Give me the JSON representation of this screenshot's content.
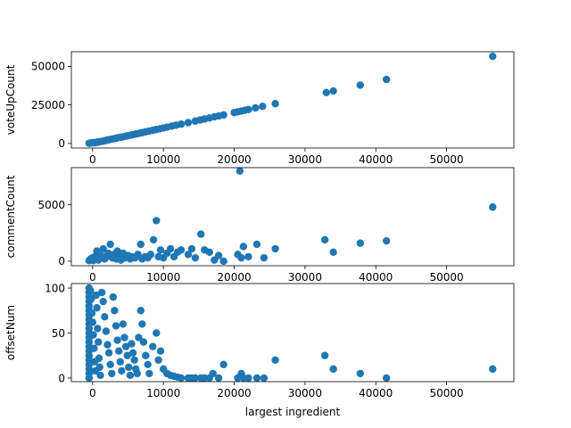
{
  "chart_data": [
    {
      "type": "scatter",
      "xlabel": "",
      "ylabel": "voteUpCount",
      "xlim": [
        -3000,
        59500
      ],
      "ylim": [
        -3000,
        59500
      ],
      "xticks": [
        0,
        10000,
        20000,
        30000,
        40000,
        50000
      ],
      "xtick_labels": [
        "0",
        "10000",
        "20000",
        "30000",
        "40000",
        "50000"
      ],
      "yticks": [
        0,
        25000,
        50000
      ],
      "ytick_labels": [
        "0",
        "25000",
        "50000"
      ],
      "show_xtick_labels": true,
      "color": "#1f77b4",
      "points": [
        [
          -500,
          100
        ],
        [
          -200,
          300
        ],
        [
          0,
          500
        ],
        [
          200,
          400
        ],
        [
          400,
          600
        ],
        [
          600,
          700
        ],
        [
          800,
          900
        ],
        [
          1000,
          1100
        ],
        [
          1300,
          1300
        ],
        [
          1500,
          1500
        ],
        [
          1800,
          1800
        ],
        [
          2000,
          2100
        ],
        [
          2300,
          2300
        ],
        [
          2600,
          2700
        ],
        [
          3000,
          3000
        ],
        [
          3300,
          3300
        ],
        [
          3600,
          3700
        ],
        [
          4000,
          4000
        ],
        [
          4300,
          4300
        ],
        [
          4700,
          4700
        ],
        [
          5000,
          5000
        ],
        [
          5400,
          5400
        ],
        [
          5800,
          5800
        ],
        [
          6200,
          6200
        ],
        [
          6600,
          6600
        ],
        [
          7000,
          7000
        ],
        [
          7500,
          7500
        ],
        [
          8000,
          8000
        ],
        [
          8500,
          8500
        ],
        [
          9000,
          9000
        ],
        [
          9500,
          9500
        ],
        [
          10000,
          10000
        ],
        [
          10500,
          10500
        ],
        [
          11200,
          11200
        ],
        [
          11800,
          11800
        ],
        [
          12500,
          12500
        ],
        [
          13500,
          13500
        ],
        [
          14500,
          14500
        ],
        [
          15200,
          15200
        ],
        [
          15800,
          15800
        ],
        [
          16500,
          16500
        ],
        [
          17200,
          17200
        ],
        [
          17800,
          17800
        ],
        [
          18500,
          18500
        ],
        [
          20000,
          20000
        ],
        [
          20500,
          20500
        ],
        [
          21000,
          21000
        ],
        [
          21500,
          21500
        ],
        [
          22000,
          22000
        ],
        [
          23000,
          23000
        ],
        [
          24000,
          24000
        ],
        [
          25800,
          25800
        ],
        [
          33000,
          33000
        ],
        [
          34000,
          34000
        ],
        [
          37800,
          37800
        ],
        [
          41500,
          41500
        ],
        [
          56500,
          56500
        ]
      ]
    },
    {
      "type": "scatter",
      "xlabel": "",
      "ylabel": "commentCount",
      "xlim": [
        -3000,
        59500
      ],
      "ylim": [
        -400,
        8300
      ],
      "xticks": [
        0,
        10000,
        20000,
        30000,
        40000,
        50000
      ],
      "xtick_labels": [
        "0",
        "10000",
        "20000",
        "30000",
        "40000",
        "50000"
      ],
      "yticks": [
        0,
        5000
      ],
      "ytick_labels": [
        "0",
        "5000"
      ],
      "show_xtick_labels": true,
      "color": "#1f77b4",
      "points": [
        [
          -500,
          50
        ],
        [
          -300,
          200
        ],
        [
          -100,
          100
        ],
        [
          0,
          300
        ],
        [
          100,
          50
        ],
        [
          200,
          150
        ],
        [
          300,
          400
        ],
        [
          500,
          200
        ],
        [
          600,
          900
        ],
        [
          800,
          100
        ],
        [
          1000,
          300
        ],
        [
          1200,
          500
        ],
        [
          1500,
          1100
        ],
        [
          1700,
          200
        ],
        [
          2000,
          400
        ],
        [
          2200,
          700
        ],
        [
          2500,
          1500
        ],
        [
          2800,
          300
        ],
        [
          3000,
          600
        ],
        [
          3300,
          200
        ],
        [
          3500,
          900
        ],
        [
          3800,
          400
        ],
        [
          4000,
          100
        ],
        [
          4300,
          700
        ],
        [
          4600,
          300
        ],
        [
          5000,
          500
        ],
        [
          5300,
          200
        ],
        [
          5600,
          400
        ],
        [
          6000,
          300
        ],
        [
          6400,
          600
        ],
        [
          6800,
          1500
        ],
        [
          7000,
          200
        ],
        [
          7400,
          400
        ],
        [
          7800,
          300
        ],
        [
          8200,
          600
        ],
        [
          8600,
          1900
        ],
        [
          9000,
          3600
        ],
        [
          9300,
          400
        ],
        [
          9600,
          1000
        ],
        [
          10000,
          300
        ],
        [
          10500,
          700
        ],
        [
          11000,
          1100
        ],
        [
          11500,
          400
        ],
        [
          12000,
          800
        ],
        [
          12500,
          1000
        ],
        [
          13500,
          600
        ],
        [
          14000,
          1100
        ],
        [
          14500,
          300
        ],
        [
          15300,
          2400
        ],
        [
          15800,
          1000
        ],
        [
          16500,
          800
        ],
        [
          17200,
          100
        ],
        [
          17800,
          500
        ],
        [
          18500,
          0
        ],
        [
          20500,
          600
        ],
        [
          20800,
          8000
        ],
        [
          21000,
          300
        ],
        [
          21300,
          1300
        ],
        [
          22000,
          400
        ],
        [
          23200,
          1500
        ],
        [
          24200,
          300
        ],
        [
          25800,
          1100
        ],
        [
          32800,
          1900
        ],
        [
          34000,
          800
        ],
        [
          37800,
          1600
        ],
        [
          41500,
          1800
        ],
        [
          56500,
          4800
        ]
      ]
    },
    {
      "type": "scatter",
      "xlabel": "largest ingredient",
      "ylabel": "offsetNum",
      "xlim": [
        -3000,
        59500
      ],
      "ylim": [
        -4,
        105
      ],
      "xticks": [
        0,
        10000,
        20000,
        30000,
        40000,
        50000
      ],
      "xtick_labels": [
        "0",
        "10000",
        "20000",
        "30000",
        "40000",
        "50000"
      ],
      "yticks": [
        0,
        50,
        100
      ],
      "ytick_labels": [
        "0",
        "50",
        "100"
      ],
      "show_xtick_labels": true,
      "color": "#1f77b4",
      "points": [
        [
          -500,
          100
        ],
        [
          -500,
          95
        ],
        [
          -500,
          90
        ],
        [
          -500,
          85
        ],
        [
          -500,
          80
        ],
        [
          -500,
          75
        ],
        [
          -500,
          70
        ],
        [
          -500,
          65
        ],
        [
          -500,
          60
        ],
        [
          -500,
          55
        ],
        [
          -500,
          50
        ],
        [
          -500,
          45
        ],
        [
          -500,
          40
        ],
        [
          -500,
          35
        ],
        [
          -500,
          30
        ],
        [
          -500,
          25
        ],
        [
          -500,
          20
        ],
        [
          -500,
          15
        ],
        [
          -500,
          10
        ],
        [
          -500,
          5
        ],
        [
          -500,
          0
        ],
        [
          -300,
          97
        ],
        [
          -200,
          88
        ],
        [
          -100,
          72
        ],
        [
          0,
          62
        ],
        [
          100,
          48
        ],
        [
          200,
          33
        ],
        [
          300,
          18
        ],
        [
          400,
          8
        ],
        [
          500,
          92
        ],
        [
          600,
          78
        ],
        [
          700,
          55
        ],
        [
          800,
          40
        ],
        [
          900,
          22
        ],
        [
          1000,
          12
        ],
        [
          1100,
          3
        ],
        [
          1300,
          95
        ],
        [
          1500,
          85
        ],
        [
          1700,
          68
        ],
        [
          1900,
          52
        ],
        [
          2100,
          37
        ],
        [
          2300,
          28
        ],
        [
          2500,
          15
        ],
        [
          2700,
          5
        ],
        [
          2900,
          90
        ],
        [
          3100,
          75
        ],
        [
          3300,
          58
        ],
        [
          3500,
          42
        ],
        [
          3700,
          30
        ],
        [
          3900,
          18
        ],
        [
          4100,
          8
        ],
        [
          4300,
          60
        ],
        [
          4500,
          45
        ],
        [
          4700,
          35
        ],
        [
          4900,
          25
        ],
        [
          5100,
          12
        ],
        [
          5300,
          3
        ],
        [
          5500,
          38
        ],
        [
          5700,
          28
        ],
        [
          5900,
          20
        ],
        [
          6100,
          10
        ],
        [
          6300,
          5
        ],
        [
          6500,
          45
        ],
        [
          6800,
          75
        ],
        [
          7000,
          60
        ],
        [
          7200,
          40
        ],
        [
          7500,
          25
        ],
        [
          7800,
          15
        ],
        [
          8000,
          5
        ],
        [
          8500,
          35
        ],
        [
          9000,
          50
        ],
        [
          9300,
          20
        ],
        [
          9600,
          30
        ],
        [
          10000,
          10
        ],
        [
          10500,
          5
        ],
        [
          11000,
          3
        ],
        [
          11500,
          2
        ],
        [
          12000,
          1
        ],
        [
          12500,
          0
        ],
        [
          13500,
          0
        ],
        [
          14000,
          0
        ],
        [
          14500,
          0
        ],
        [
          15300,
          0
        ],
        [
          15800,
          0
        ],
        [
          16500,
          0
        ],
        [
          17000,
          5
        ],
        [
          17800,
          0
        ],
        [
          18500,
          15
        ],
        [
          20500,
          0
        ],
        [
          21000,
          5
        ],
        [
          21300,
          0
        ],
        [
          22000,
          0
        ],
        [
          23200,
          0
        ],
        [
          24200,
          0
        ],
        [
          25800,
          20
        ],
        [
          32800,
          25
        ],
        [
          34000,
          10
        ],
        [
          37800,
          5
        ],
        [
          41500,
          0
        ],
        [
          56500,
          10
        ]
      ]
    }
  ]
}
